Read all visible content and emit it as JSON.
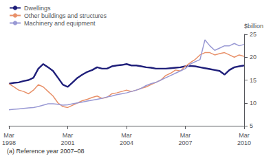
{
  "chart_data": {
    "type": "line",
    "ylabel": "$billion",
    "footnote": "(a) Reference year 2007–08",
    "categories": [
      "Mar\n1998",
      null,
      null,
      null,
      null,
      null,
      null,
      null,
      null,
      null,
      null,
      null,
      "Mar\n2001",
      null,
      null,
      null,
      null,
      null,
      null,
      null,
      null,
      null,
      null,
      null,
      "Mar\n2004",
      null,
      null,
      null,
      null,
      null,
      null,
      null,
      null,
      null,
      null,
      null,
      "Mar\n2007",
      null,
      null,
      null,
      null,
      null,
      null,
      null,
      null,
      null,
      null,
      null,
      "Mar\n2010"
    ],
    "series": [
      {
        "name": "Dwellings",
        "color": "#1f1f7a",
        "values": [
          14.2,
          14.4,
          14.5,
          14.8,
          15.0,
          15.5,
          17.5,
          18.5,
          17.8,
          17.0,
          15.5,
          14.0,
          13.5,
          14.5,
          15.5,
          16.2,
          16.8,
          17.2,
          17.8,
          17.5,
          17.5,
          18.0,
          18.2,
          18.3,
          18.5,
          18.2,
          18.2,
          18.0,
          17.8,
          17.7,
          17.5,
          17.5,
          17.5,
          17.6,
          17.7,
          17.8,
          18.0,
          18.1,
          18.0,
          17.8,
          17.6,
          17.4,
          17.2,
          17.0,
          16.2,
          17.2,
          17.8,
          18.0,
          18.2
        ]
      },
      {
        "name": "Other buildings and structures",
        "color": "#e8916a",
        "values": [
          14.2,
          13.5,
          12.8,
          12.5,
          12.0,
          12.8,
          14.0,
          13.5,
          12.5,
          11.5,
          10.0,
          9.2,
          9.0,
          9.5,
          10.0,
          10.5,
          10.8,
          11.2,
          11.5,
          11.0,
          11.2,
          12.0,
          12.2,
          12.5,
          12.8,
          12.5,
          12.8,
          13.2,
          13.5,
          14.0,
          14.5,
          15.0,
          16.0,
          16.5,
          17.2,
          17.0,
          18.0,
          18.8,
          19.5,
          20.5,
          21.0,
          21.0,
          20.5,
          20.8,
          21.0,
          20.5,
          20.0,
          20.5,
          20.2
        ]
      },
      {
        "name": "Machinery and equipment",
        "color": "#9999d4",
        "values": [
          8.5,
          8.6,
          8.7,
          8.8,
          8.9,
          9.0,
          9.2,
          9.5,
          9.8,
          9.8,
          9.7,
          9.5,
          9.6,
          9.8,
          10.0,
          10.2,
          10.4,
          10.6,
          10.8,
          11.0,
          11.3,
          11.5,
          11.8,
          12.0,
          12.2,
          12.5,
          12.8,
          13.2,
          13.8,
          14.2,
          14.5,
          15.0,
          15.5,
          16.0,
          16.5,
          17.0,
          17.5,
          18.5,
          19.0,
          19.5,
          23.8,
          22.5,
          21.5,
          22.0,
          22.5,
          22.5,
          23.0,
          22.5,
          22.8
        ]
      }
    ],
    "ylim": [
      5,
      25
    ],
    "yticks": [
      5,
      10,
      15,
      20,
      25
    ],
    "grid": false,
    "legend": "upper left"
  }
}
